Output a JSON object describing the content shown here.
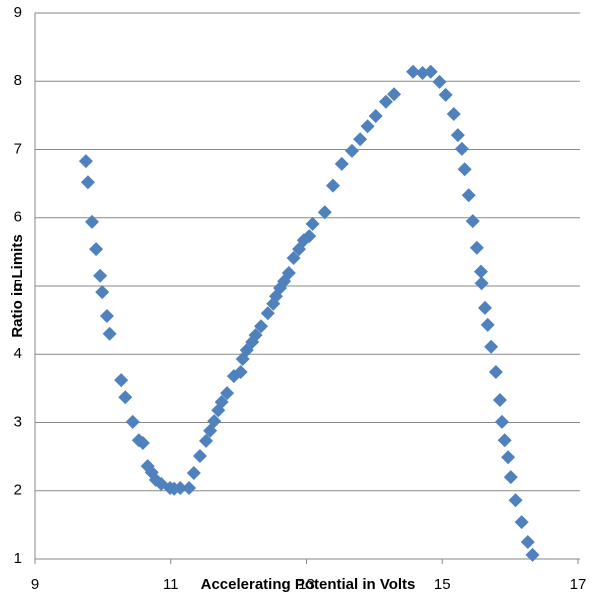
{
  "chart_data": {
    "type": "scatter",
    "x_label": "Accelerating Potential in Volts",
    "y_label": "Ratio in Limits",
    "xlim": [
      9,
      17
    ],
    "xticks": [
      9,
      11,
      13,
      15,
      17
    ],
    "ylim": [
      1,
      9
    ],
    "yticks": [
      1,
      2,
      3,
      4,
      5,
      6,
      7,
      8,
      9
    ],
    "grid": true,
    "series": [
      {
        "color": "#4f81bd",
        "x": [
          9.75,
          9.78,
          9.84,
          9.9,
          9.96,
          9.99,
          10.06,
          10.1,
          10.27,
          10.33,
          10.44,
          10.53,
          10.59,
          10.66,
          10.72,
          10.78,
          10.86,
          10.99,
          11.05,
          11.14,
          11.27,
          11.34,
          11.43,
          11.52,
          11.58,
          11.64,
          11.7,
          11.75,
          11.83,
          11.93,
          12.03,
          12.06,
          12.12,
          12.2,
          12.25,
          12.33,
          12.43,
          12.51,
          12.55,
          12.61,
          12.67,
          12.74,
          12.81,
          12.89,
          12.96,
          13.04,
          13.09,
          13.27,
          13.39,
          13.52,
          13.67,
          13.79,
          13.9,
          14.02,
          14.17,
          14.29,
          14.57,
          14.71,
          14.83,
          14.96,
          15.05,
          15.17,
          15.23,
          15.29,
          15.33,
          15.39,
          15.45,
          15.51,
          15.57,
          15.58,
          15.63,
          15.67,
          15.72,
          15.79,
          15.85,
          15.88,
          15.92,
          15.97,
          16.01,
          16.08,
          16.17,
          16.26,
          16.33
        ],
        "values": [
          6.83,
          6.52,
          5.94,
          5.54,
          5.15,
          4.91,
          4.56,
          4.3,
          3.62,
          3.37,
          3.01,
          2.74,
          2.7,
          2.36,
          2.27,
          2.16,
          2.1,
          2.04,
          2.03,
          2.04,
          2.04,
          2.26,
          2.51,
          2.73,
          2.88,
          3.02,
          3.18,
          3.3,
          3.43,
          3.68,
          3.74,
          3.93,
          4.06,
          4.18,
          4.28,
          4.41,
          4.6,
          4.74,
          4.85,
          4.97,
          5.07,
          5.19,
          5.41,
          5.54,
          5.67,
          5.73,
          5.91,
          6.08,
          6.47,
          6.79,
          6.98,
          7.15,
          7.34,
          7.49,
          7.7,
          7.81,
          8.14,
          8.12,
          8.14,
          7.99,
          7.8,
          7.52,
          7.21,
          7.01,
          6.71,
          6.33,
          5.95,
          5.56,
          5.21,
          5.04,
          4.68,
          4.43,
          4.11,
          3.74,
          3.33,
          3.01,
          2.74,
          2.49,
          2.2,
          1.86,
          1.54,
          1.25,
          1.06
        ]
      }
    ]
  }
}
